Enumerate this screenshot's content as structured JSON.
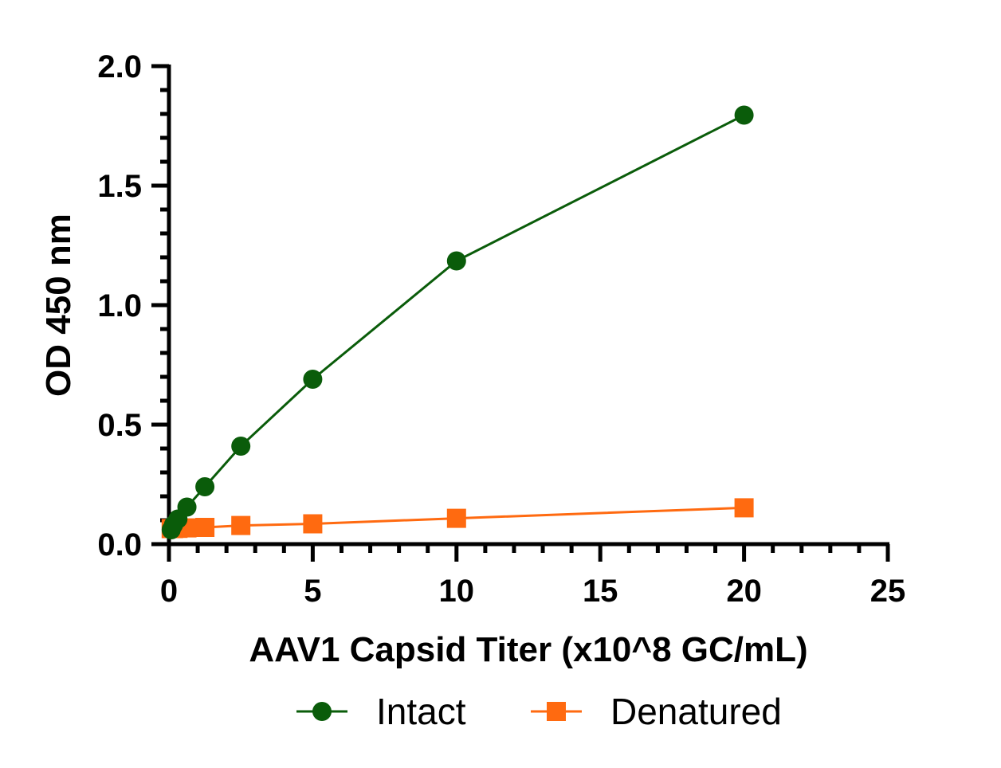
{
  "chart_data": {
    "type": "line",
    "title": "",
    "xlabel": "AAV1 Capsid Titer (x10^8 GC/mL)",
    "ylabel": "OD 450 nm",
    "xlim": [
      0,
      25
    ],
    "ylim": [
      0,
      2.0
    ],
    "xticks": [
      0,
      5,
      10,
      15,
      20,
      25
    ],
    "xtick_labels": [
      "0",
      "5",
      "10",
      "15",
      "20",
      "25"
    ],
    "yticks": [
      0,
      0.5,
      1.0,
      1.5,
      2.0
    ],
    "ytick_labels": [
      "0.0",
      "0.5",
      "1.0",
      "1.5",
      "2.0"
    ],
    "grid": false,
    "legend_position": "bottom",
    "series": [
      {
        "name": "Intact",
        "marker": "circle",
        "color": "#0a5c0a",
        "x": [
          0.078,
          0.156,
          0.3125,
          0.625,
          1.25,
          2.5,
          5,
          10,
          20
        ],
        "y": [
          0.06,
          0.08,
          0.105,
          0.155,
          0.24,
          0.41,
          0.69,
          1.185,
          1.795
        ]
      },
      {
        "name": "Denatured",
        "marker": "square",
        "color": "#ff6a10",
        "x": [
          0.078,
          0.156,
          0.3125,
          0.625,
          1.25,
          2.5,
          5,
          10,
          20
        ],
        "y": [
          0.065,
          0.065,
          0.066,
          0.068,
          0.07,
          0.078,
          0.085,
          0.108,
          0.152
        ]
      }
    ]
  }
}
